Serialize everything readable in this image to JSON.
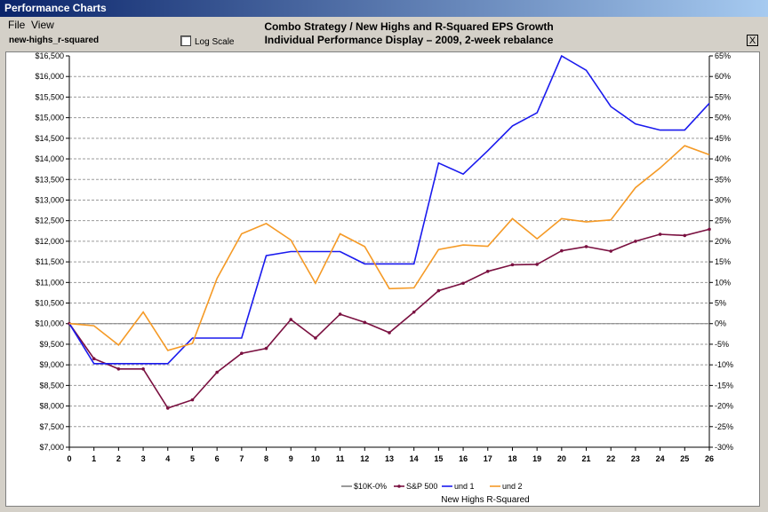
{
  "window": {
    "title": "Performance Charts",
    "close_glyph": "X"
  },
  "menu": {
    "file": "File",
    "view": "View"
  },
  "toolbar": {
    "strategy_name": "new-highs_r-squared",
    "log_scale_label": "Log Scale",
    "log_scale_checked": false
  },
  "header": {
    "title_line1": "Combo Strategy / New Highs and R-Squared EPS Growth",
    "title_line2": "Individual Performance Display – 2009, 2-week rebalance"
  },
  "chart_data": {
    "type": "line",
    "x": [
      0,
      1,
      2,
      3,
      4,
      5,
      6,
      7,
      8,
      9,
      10,
      11,
      12,
      13,
      14,
      15,
      16,
      17,
      18,
      19,
      20,
      21,
      22,
      23,
      24,
      25,
      26
    ],
    "xlim": [
      0,
      26
    ],
    "left_axis": {
      "ylim": [
        7000,
        16500
      ],
      "ticks": [
        "$7,000",
        "$7,500",
        "$8,000",
        "$8,500",
        "$9,000",
        "$9,500",
        "$10,000",
        "$10,500",
        "$11,000",
        "$11,500",
        "$12,000",
        "$12,500",
        "$13,000",
        "$13,500",
        "$14,000",
        "$14,500",
        "$15,000",
        "$15,500",
        "$16,000",
        "$16,500"
      ]
    },
    "right_axis": {
      "ylim": [
        -30,
        65
      ],
      "ticks": [
        "-30%",
        "-25%",
        "-20%",
        "-15%",
        "-10%",
        "-5%",
        "0%",
        "5%",
        "10%",
        "15%",
        "20%",
        "25%",
        "30%",
        "35%",
        "40%",
        "45%",
        "50%",
        "55%",
        "60%",
        "65%"
      ]
    },
    "grid": true,
    "legend_position": "bottom-center",
    "legend_caption": "New Highs  R-Squared",
    "series": [
      {
        "name": "$10K-0%",
        "color": "#808080",
        "markers": false,
        "values": [
          10000,
          10000,
          10000,
          10000,
          10000,
          10000,
          10000,
          10000,
          10000,
          10000,
          10000,
          10000,
          10000,
          10000,
          10000,
          10000,
          10000,
          10000,
          10000,
          10000,
          10000,
          10000,
          10000,
          10000,
          10000,
          10000,
          10000
        ]
      },
      {
        "name": "S&P 500",
        "color": "#7a1040",
        "markers": true,
        "values": [
          10000,
          9150,
          8900,
          8900,
          7950,
          8150,
          8820,
          9280,
          9400,
          10100,
          9650,
          10230,
          10030,
          9780,
          10280,
          10800,
          10980,
          11270,
          11430,
          11440,
          11770,
          11870,
          11760,
          12000,
          12170,
          12140,
          12290
        ]
      },
      {
        "name": "und  1",
        "color": "#1a1aee",
        "markers": false,
        "values": [
          10000,
          9030,
          9030,
          9030,
          9030,
          9650,
          9650,
          9650,
          11650,
          11750,
          11750,
          11750,
          11450,
          11450,
          11450,
          13900,
          13630,
          14200,
          14800,
          15120,
          16500,
          16150,
          15270,
          14850,
          14700,
          14700,
          15350
        ]
      },
      {
        "name": "und  2",
        "color": "#f59a26",
        "markers": false,
        "values": [
          10000,
          9950,
          9480,
          10280,
          9350,
          9520,
          11100,
          12180,
          12430,
          12030,
          10980,
          12180,
          11870,
          10850,
          10870,
          11800,
          11910,
          11880,
          12550,
          12060,
          12550,
          12470,
          12520,
          13300,
          13780,
          14320,
          14100
        ]
      }
    ]
  }
}
